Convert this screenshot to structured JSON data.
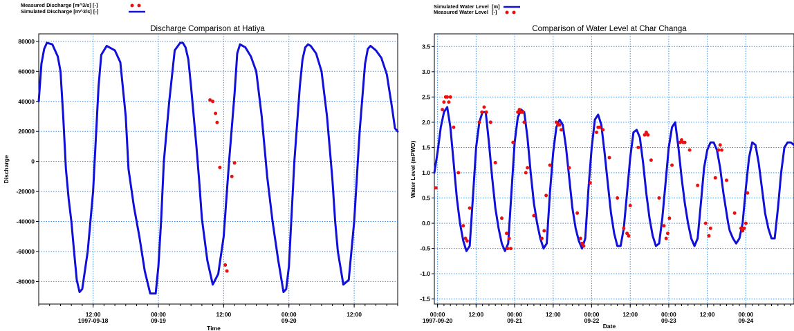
{
  "chart_data": [
    {
      "type": "line",
      "title": "Discharge Comparison at Hatiya",
      "xlabel": "Time",
      "ylabel": "Discharge",
      "ylim": [
        -95000,
        85000
      ],
      "xlim_hours": [
        -4,
        62
      ],
      "y_ticks": [
        "80000",
        "60000",
        "40000",
        "20000",
        "0",
        "-20000",
        "-40000",
        "-60000",
        "-80000"
      ],
      "x_ticks": [
        {
          "line1": "12:00",
          "line2": "1997-09-18"
        },
        {
          "line1": "00:00",
          "line2": "09-19"
        },
        {
          "line1": "12:00",
          "line2": ""
        },
        {
          "line1": "00:00",
          "line2": "09-20"
        },
        {
          "line1": "12:00",
          "line2": ""
        }
      ],
      "x_tick_hours": [
        6,
        18,
        30,
        42,
        54
      ],
      "legend": [
        {
          "label": "Measured Discharge [m^3/s] [-]",
          "style": "dots",
          "color": "#e81010"
        },
        {
          "label": "Simulated Discharge [m^3/s] [-]",
          "style": "line",
          "color": "#1010d8"
        }
      ],
      "grid": true,
      "series": [
        {
          "name": "Simulated Discharge [m^3/s] [-]",
          "style": "line",
          "color": "#1010d8",
          "hours": [
            -4,
            -3.5,
            -3,
            -2.5,
            -1.5,
            -0.5,
            0,
            0.5,
            1,
            1.5,
            2,
            2.5,
            3,
            3.5,
            4,
            5,
            6,
            7,
            7.5,
            8.5,
            10,
            11,
            12,
            12.5,
            13.5,
            14.5,
            15.5,
            16.5,
            17.5,
            18,
            18.5,
            19,
            20,
            21,
            22,
            22.5,
            23,
            23.5,
            24,
            24.5,
            25,
            25.5,
            26,
            27,
            28,
            29,
            30,
            31,
            32,
            32.5,
            33,
            34,
            35,
            36,
            37,
            38,
            39,
            40,
            41,
            41.5,
            42,
            43,
            44,
            44.5,
            45,
            45.5,
            46,
            47,
            48,
            49,
            50,
            50.5,
            51,
            52,
            53,
            54,
            55,
            56,
            56.5,
            57,
            58,
            59,
            60,
            61,
            61.5,
            62
          ],
          "values": [
            40000,
            65000,
            75000,
            79000,
            78000,
            70000,
            60000,
            30000,
            -5000,
            -25000,
            -40000,
            -60000,
            -79000,
            -87000,
            -85000,
            -60000,
            -20000,
            50000,
            71000,
            77000,
            74000,
            66000,
            30000,
            -5000,
            -30000,
            -50000,
            -73000,
            -88000,
            -88000,
            -70000,
            -40000,
            0,
            40000,
            74000,
            79000,
            79000,
            76000,
            68000,
            50000,
            30000,
            10000,
            -13000,
            -38000,
            -66000,
            -82000,
            -75000,
            -50000,
            0,
            45000,
            72000,
            78000,
            76000,
            70000,
            60000,
            30000,
            -10000,
            -40000,
            -65000,
            -87000,
            -85000,
            -70000,
            0,
            50000,
            68000,
            76000,
            78000,
            77000,
            72000,
            60000,
            30000,
            -12000,
            -40000,
            -60000,
            -82000,
            -79000,
            -40000,
            20000,
            65000,
            75000,
            77000,
            74000,
            69000,
            58000,
            35000,
            22000,
            20000
          ]
        },
        {
          "name": "Measured Discharge [m^3/s] [-]",
          "style": "dots",
          "color": "#e81010",
          "hours": [
            27.5,
            28,
            28.5,
            28.8,
            29.3,
            30.3,
            30.6,
            31.5,
            32
          ],
          "values": [
            41000,
            40000,
            32000,
            26000,
            -4000,
            -69000,
            -73000,
            -10000,
            -1000
          ]
        }
      ]
    },
    {
      "type": "line",
      "title": "Comparison of Water Level at Char Changa",
      "xlabel": "Date",
      "ylabel": "Water Level (mPWD)",
      "ylim": [
        -1.6,
        3.75
      ],
      "xlim_hours": [
        -1,
        111
      ],
      "y_ticks": [
        "3.5",
        "3.0",
        "2.5",
        "2.0",
        "1.5",
        "1.0",
        "0.5",
        "0.0",
        "-0.5",
        "-1.0",
        "-1.5"
      ],
      "x_ticks": [
        {
          "line1": "00:00",
          "line2": "1997-09-20"
        },
        {
          "line1": "12:00",
          "line2": ""
        },
        {
          "line1": "00:00",
          "line2": "09-21"
        },
        {
          "line1": "12:00",
          "line2": ""
        },
        {
          "line1": "00:00",
          "line2": "09-22"
        },
        {
          "line1": "12:00",
          "line2": ""
        },
        {
          "line1": "00:00",
          "line2": "09-23"
        },
        {
          "line1": "12:00",
          "line2": ""
        },
        {
          "line1": "00:00",
          "line2": "09-24"
        }
      ],
      "x_tick_hours": [
        0,
        12,
        24,
        36,
        48,
        60,
        72,
        84,
        96
      ],
      "legend": [
        {
          "label": "Simulated Water Level",
          "unit": "[m]",
          "style": "line",
          "color": "#1010d8"
        },
        {
          "label": "Measured Water Level",
          "unit": "[-]",
          "style": "dots",
          "color": "#e81010"
        }
      ],
      "grid": true,
      "series": [
        {
          "name": "Simulated Water Level",
          "style": "line",
          "color": "#1010d8",
          "hours": [
            -1,
            0,
            1,
            2,
            3,
            4,
            5,
            6,
            7,
            8,
            9,
            10,
            11,
            12,
            13,
            14,
            15,
            16,
            17,
            18,
            19,
            20,
            21,
            22,
            23,
            24,
            25,
            26,
            27,
            28,
            29,
            30,
            31,
            32,
            33,
            34,
            35,
            36,
            37,
            38,
            39,
            40,
            41,
            42,
            43,
            44,
            45,
            46,
            47,
            48,
            49,
            50,
            51,
            52,
            53,
            54,
            55,
            56,
            57,
            58,
            59,
            60,
            61,
            62,
            63,
            64,
            65,
            66,
            67,
            68,
            69,
            70,
            71,
            72,
            73,
            74,
            75,
            76,
            77,
            78,
            79,
            80,
            81,
            82,
            83,
            84,
            85,
            86,
            87,
            88,
            89,
            90,
            90.5,
            91,
            92,
            93,
            94,
            95,
            96,
            97,
            98,
            99,
            100,
            101,
            102,
            103,
            104,
            105,
            106,
            107,
            108,
            109,
            110,
            111
          ],
          "values": [
            1.0,
            1.4,
            1.9,
            2.2,
            2.3,
            1.9,
            1.2,
            0.5,
            0.0,
            -0.35,
            -0.55,
            -0.45,
            0.5,
            1.5,
            2.0,
            2.2,
            2.2,
            1.6,
            0.9,
            0.3,
            -0.1,
            -0.4,
            -0.55,
            -0.4,
            0.6,
            1.6,
            2.1,
            2.25,
            2.2,
            1.7,
            1.0,
            0.4,
            0.0,
            -0.3,
            -0.5,
            -0.4,
            0.6,
            1.4,
            1.9,
            2.05,
            1.95,
            1.5,
            0.9,
            0.3,
            -0.1,
            -0.35,
            -0.5,
            -0.3,
            0.7,
            1.5,
            2.05,
            2.15,
            1.95,
            1.4,
            0.8,
            0.2,
            -0.2,
            -0.45,
            -0.45,
            -0.1,
            0.6,
            1.3,
            1.8,
            1.85,
            1.7,
            1.2,
            0.6,
            0.1,
            -0.25,
            -0.45,
            -0.4,
            0.1,
            0.8,
            1.5,
            1.9,
            2.0,
            1.5,
            0.9,
            0.4,
            0.0,
            -0.3,
            -0.45,
            -0.3,
            0.4,
            1.1,
            1.45,
            1.6,
            1.6,
            1.45,
            1.1,
            0.6,
            0.2,
            0.0,
            -0.15,
            -0.3,
            -0.4,
            -0.3,
            0.0,
            0.7,
            1.3,
            1.6,
            1.55,
            1.2,
            0.7,
            0.2,
            -0.1,
            -0.3,
            -0.3,
            0.3,
            1.0,
            1.5,
            1.6,
            1.6,
            1.55
          ]
        },
        {
          "name": "Measured Water Level",
          "style": "dots",
          "color": "#e81010",
          "hours": [
            -0.5,
            1.5,
            2,
            2.5,
            3,
            3.5,
            4,
            5,
            6.5,
            8,
            8.7,
            9.2,
            10,
            13,
            13.8,
            14.5,
            15.2,
            16.5,
            18,
            20,
            21.5,
            21.8,
            22.3,
            22.8,
            23.5,
            25,
            25.5,
            26,
            26.5,
            27,
            27.5,
            28,
            30,
            32.5,
            33.2,
            33.8,
            35,
            37,
            37.5,
            38,
            38.5,
            41,
            43.5,
            44.5,
            45,
            45.5,
            47.5,
            49.5,
            50,
            50.5,
            51.5,
            53.5,
            56,
            58,
            59,
            59.5,
            60,
            62.5,
            64.5,
            65,
            65.5,
            66.5,
            69,
            70.5,
            71.2,
            71.7,
            72.2,
            73,
            75.5,
            76,
            76.5,
            77,
            78.5,
            81,
            83.5,
            84.5,
            85,
            86.5,
            87.5,
            88,
            88.5,
            90,
            92.5,
            94.5,
            95,
            95.5,
            96,
            96.5
          ],
          "values": [
            0.7,
            2.25,
            2.4,
            2.5,
            2.5,
            2.4,
            2.5,
            1.9,
            1.0,
            -0.05,
            -0.3,
            -0.35,
            0.3,
            2.0,
            2.2,
            2.3,
            2.2,
            2.0,
            1.2,
            0.1,
            -0.2,
            -0.5,
            -0.3,
            -0.5,
            1.6,
            2.2,
            2.25,
            2.2,
            2.2,
            2.0,
            1.0,
            1.1,
            0.15,
            -0.3,
            -0.15,
            0.55,
            1.15,
            2.0,
            1.95,
            1.95,
            1.85,
            1.1,
            0.2,
            -0.3,
            -0.4,
            -0.45,
            0.8,
            1.8,
            1.9,
            1.9,
            1.85,
            1.3,
            0.5,
            -0.1,
            -0.2,
            -0.25,
            0.35,
            1.5,
            1.75,
            1.8,
            1.75,
            1.25,
            0.5,
            -0.05,
            -0.3,
            -0.2,
            0.1,
            1.15,
            1.6,
            1.65,
            1.6,
            1.6,
            1.45,
            0.75,
            0.0,
            -0.25,
            -0.1,
            0.9,
            1.45,
            1.55,
            1.45,
            0.85,
            0.2,
            -0.1,
            -0.15,
            -0.1,
            0.0,
            0.6
          ]
        }
      ]
    }
  ]
}
